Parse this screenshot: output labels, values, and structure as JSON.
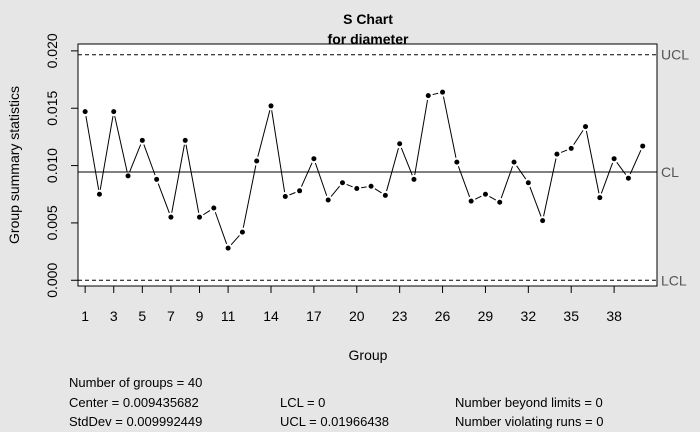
{
  "chart_data": {
    "type": "line",
    "title": "S Chart",
    "subtitle": "for diameter",
    "xlabel": "Group",
    "ylabel": "Group summary statistics",
    "x_ticks": [
      "1",
      "3",
      "5",
      "7",
      "9",
      "11",
      "14",
      "17",
      "20",
      "23",
      "26",
      "29",
      "32",
      "35",
      "38"
    ],
    "y_ticks": [
      "0.000",
      "0.005",
      "0.010",
      "0.015",
      "0.020"
    ],
    "ylim": [
      -0.0005,
      0.0206
    ],
    "xlim": [
      0.5,
      41.0
    ],
    "limits": {
      "ucl": {
        "label": "UCL",
        "value": 0.01966438,
        "style": "dashed"
      },
      "cl": {
        "label": "CL",
        "value": 0.009435682,
        "style": "solid"
      },
      "lcl": {
        "label": "LCL",
        "value": 0,
        "style": "dashed"
      }
    },
    "x": [
      1,
      2,
      3,
      4,
      5,
      6,
      7,
      8,
      9,
      10,
      11,
      12,
      13,
      14,
      15,
      16,
      17,
      18,
      19,
      20,
      21,
      22,
      23,
      24,
      25,
      26,
      27,
      28,
      29,
      30,
      31,
      32,
      33,
      34,
      35,
      36,
      37,
      38,
      39,
      40
    ],
    "values": [
      0.0147,
      0.0075,
      0.0147,
      0.0091,
      0.0122,
      0.0088,
      0.0055,
      0.0122,
      0.0055,
      0.0063,
      0.0028,
      0.0042,
      0.0104,
      0.0152,
      0.0073,
      0.0078,
      0.0106,
      0.007,
      0.0085,
      0.008,
      0.0082,
      0.0074,
      0.0119,
      0.0088,
      0.0161,
      0.0164,
      0.0103,
      0.0069,
      0.0075,
      0.0068,
      0.0103,
      0.0085,
      0.0052,
      0.011,
      0.0115,
      0.0134,
      0.0072,
      0.0106,
      0.0089,
      0.0117
    ],
    "grid": false,
    "legend": "none"
  },
  "stats": {
    "groups": "Number of groups = 40",
    "center": "Center = 0.009435682",
    "stddev": "StdDev = 0.009992449",
    "lcl": "LCL = 0",
    "ucl": "UCL = 0.01966438",
    "beyond": "Number beyond limits = 0",
    "violating": "Number violating runs = 0"
  },
  "colors": {
    "background": "#e6e6e6",
    "plot_bg": "#ffffff",
    "line": "#000000",
    "limit_label": "#555555"
  }
}
